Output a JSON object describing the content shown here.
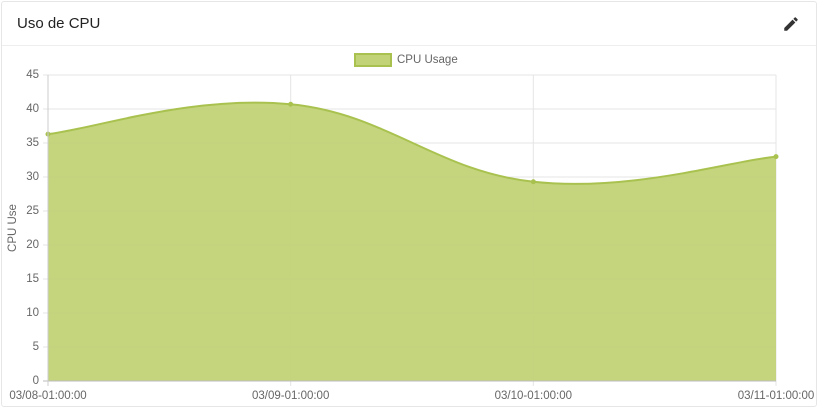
{
  "header": {
    "title": "Uso de CPU"
  },
  "chart_data": {
    "type": "area",
    "y_label": "CPU Use",
    "categories": [
      "03/08-01:00:00",
      "03/09-01:00:00",
      "03/10-01:00:00",
      "03/11-01:00:00"
    ],
    "series": [
      {
        "name": "CPU Usage",
        "color": "#c2d377",
        "values": [
          36.3,
          40.7,
          29.3,
          33.0
        ]
      }
    ],
    "ylim": [
      0,
      45
    ],
    "yticks": [
      0,
      5,
      10,
      15,
      20,
      25,
      30,
      35,
      40,
      45
    ],
    "grid": true,
    "legend": "top"
  }
}
